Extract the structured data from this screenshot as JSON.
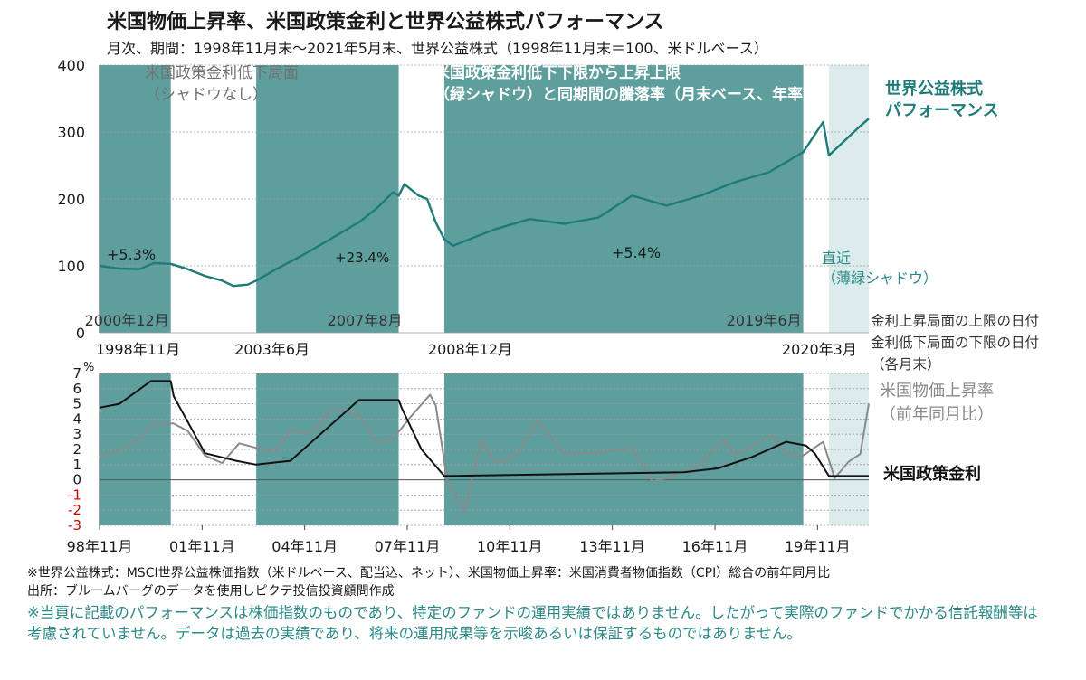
{
  "header": {
    "title": "米国物価上昇率、米国政策金利と世界公益株式パフォーマンス",
    "subtitle": "月次、期間：1998年11月末～2021年5月末、世界公益株式（1998年11月末＝100、米ドルベース）"
  },
  "colors": {
    "shade": "#5e9f9e",
    "light_shade": "#dcecec",
    "equity_line": "#1f7b79",
    "cpi_line": "#8a8a8a",
    "rate_line": "#111111",
    "annotation_teal": "#2b8a89",
    "annotation_gray": "#707070",
    "negative_tick": "#cc0000"
  },
  "chart_data": [
    {
      "type": "line",
      "title": "",
      "x_range": [
        "1998-11",
        "2021-05"
      ],
      "ylim": [
        0,
        400
      ],
      "yticks": [
        "0",
        "100",
        "200",
        "300",
        "400"
      ],
      "grid": true,
      "series": [
        {
          "name": "世界公益株式パフォーマンス",
          "x": [
            "1998-11",
            "1999-06",
            "2000-01",
            "2000-06",
            "2000-12",
            "2001-06",
            "2001-12",
            "2002-06",
            "2002-10",
            "2003-03",
            "2003-06",
            "2004-01",
            "2004-12",
            "2005-12",
            "2006-06",
            "2006-12",
            "2007-06",
            "2007-08",
            "2007-10",
            "2008-03",
            "2008-06",
            "2008-09",
            "2008-12",
            "2009-03",
            "2010-06",
            "2011-06",
            "2012-06",
            "2013-06",
            "2014-06",
            "2015-06",
            "2016-06",
            "2017-06",
            "2018-06",
            "2019-06",
            "2020-01",
            "2020-03",
            "2020-08",
            "2021-01",
            "2021-05"
          ],
          "values": [
            100,
            96,
            95,
            104,
            103,
            95,
            85,
            78,
            70,
            72,
            78,
            95,
            120,
            150,
            165,
            185,
            210,
            205,
            222,
            205,
            200,
            165,
            140,
            130,
            155,
            170,
            163,
            172,
            205,
            190,
            205,
            225,
            240,
            270,
            315,
            265,
            285,
            305,
            320
          ]
        }
      ],
      "labels": {
        "legend_equity": "世界公益株式\nパフォーマンス",
        "period_no_shade": "米国政策金利低下局面\n（シャドウなし）",
        "period_green_shade": "米国政策金利低下下限から上昇上限\n（緑シャドウ）と同期間の騰落率（月末ベース、年率）",
        "pct_1": "+5.3%",
        "pct_2": "+23.4%",
        "pct_3": "+5.4%",
        "recent": "直近\n（薄緑シャドウ）",
        "date_2000": "2000年12月",
        "date_2007": "2007年8月",
        "date_2019": "2019年6月",
        "date_1998": "1998年11月",
        "date_2003": "2003年6月",
        "date_2008": "2008年12月",
        "date_2020": "2020年3月",
        "side_note": "金利上昇局面の上限の日付\n金利低下局面の下限の日付\n（各月末）"
      }
    },
    {
      "type": "line",
      "title": "",
      "ylabel": "%",
      "x_range": [
        "1998-11",
        "2021-05"
      ],
      "ylim": [
        -3,
        7
      ],
      "yticks": [
        "7",
        "6",
        "5",
        "4",
        "3",
        "2",
        "1",
        "0",
        "-1",
        "-2",
        "-3"
      ],
      "xticks": [
        "98年11月",
        "01年11月",
        "04年11月",
        "07年11月",
        "10年11月",
        "13年11月",
        "16年11月",
        "19年11月"
      ],
      "series": [
        {
          "name": "米国物価上昇率\n（前年同月比）",
          "x": [
            "1998-11",
            "1999-06",
            "2000-01",
            "2000-06",
            "2001-01",
            "2001-06",
            "2001-12",
            "2002-06",
            "2002-12",
            "2003-06",
            "2004-01",
            "2004-06",
            "2005-01",
            "2005-09",
            "2006-06",
            "2006-12",
            "2007-06",
            "2007-12",
            "2008-07",
            "2008-09",
            "2009-01",
            "2009-07",
            "2010-01",
            "2010-06",
            "2011-01",
            "2011-09",
            "2012-06",
            "2013-06",
            "2014-06",
            "2015-01",
            "2015-06",
            "2016-06",
            "2017-02",
            "2017-06",
            "2018-07",
            "2019-01",
            "2019-06",
            "2020-01",
            "2020-05",
            "2020-10",
            "2021-02",
            "2021-05"
          ],
          "values": [
            1.5,
            2.0,
            2.7,
            3.7,
            3.7,
            3.2,
            1.6,
            1.1,
            2.4,
            2.1,
            1.9,
            3.3,
            3.0,
            4.7,
            4.3,
            2.5,
            2.7,
            4.1,
            5.6,
            4.9,
            0.0,
            -2.1,
            2.6,
            1.1,
            1.6,
            3.9,
            1.7,
            1.8,
            2.1,
            -0.1,
            0.1,
            1.0,
            2.7,
            1.6,
            2.9,
            1.6,
            1.6,
            2.5,
            0.1,
            1.2,
            1.7,
            5.0
          ]
        },
        {
          "name": "米国政策金利",
          "x": [
            "1998-11",
            "1999-06",
            "2000-05",
            "2000-12",
            "2001-01",
            "2001-12",
            "2002-11",
            "2003-06",
            "2004-06",
            "2006-06",
            "2007-08",
            "2007-09",
            "2008-04",
            "2008-12",
            "2015-12",
            "2016-12",
            "2017-12",
            "2018-12",
            "2019-07",
            "2019-10",
            "2020-03",
            "2021-05"
          ],
          "values": [
            4.75,
            5.0,
            6.5,
            6.5,
            5.5,
            1.75,
            1.25,
            1.0,
            1.25,
            5.25,
            5.25,
            4.75,
            2.0,
            0.25,
            0.5,
            0.75,
            1.5,
            2.5,
            2.25,
            1.75,
            0.25,
            0.25
          ]
        }
      ]
    }
  ],
  "footnotes": {
    "note1": "※世界公益株式：MSCI世界公益株価指数（米ドルベース、配当込、ネット）、米国物価上昇率：米国消費者物価指数（CPI）総合の前年同月比",
    "note2": "出所：ブルームバーグのデータを使用しピクテ投信投資顧問作成",
    "disclaimer": "※当頁に記載のパフォーマンスは株価指数のものであり、特定のファンドの運用実績ではありません。したがって実際のファンドでかかる信託報酬等は考慮されていません。データは過去の実績であり、将来の運用成果等を示唆あるいは保証するものではありません。"
  }
}
